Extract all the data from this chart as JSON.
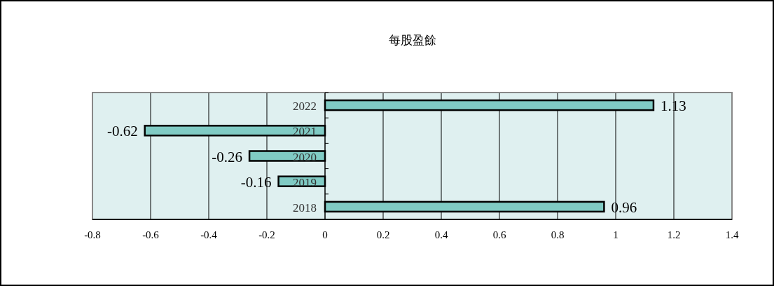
{
  "chart_data": {
    "type": "bar",
    "orientation": "horizontal",
    "title": "每股盈餘",
    "categories": [
      "2022",
      "2021",
      "2020",
      "2019",
      "2018"
    ],
    "values": [
      1.13,
      -0.62,
      -0.26,
      -0.16,
      0.96
    ],
    "color": "#80cbc4",
    "data_labels": true,
    "grid": "x",
    "xlim": [
      -0.8,
      1.4
    ],
    "xticks": [
      -0.8,
      -0.6,
      -0.4,
      -0.2,
      0,
      0.2,
      0.4,
      0.6,
      0.8,
      1,
      1.2,
      1.4
    ]
  }
}
